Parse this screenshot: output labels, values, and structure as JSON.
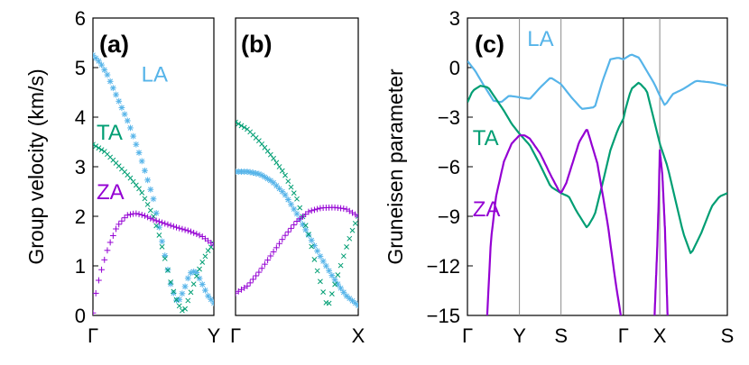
{
  "colors": {
    "LA": "#56b4e9",
    "TA": "#009e73",
    "ZA": "#9400d3"
  },
  "chart_data": [
    {
      "id": "a",
      "type": "scatter",
      "panel_label": "(a)",
      "ylabel": "Group velocity (km/s)",
      "xlabel": "",
      "ylim": [
        0,
        6
      ],
      "yticks": [
        0,
        1,
        2,
        3,
        4,
        5,
        6
      ],
      "xlim": [
        0,
        1
      ],
      "xticks": [
        {
          "x": 0,
          "label": "Γ"
        },
        {
          "x": 1,
          "label": "Y"
        }
      ],
      "mode_labels": [
        {
          "name": "LA",
          "x": 0.4,
          "y": 4.72
        },
        {
          "name": "TA",
          "x": 0.03,
          "y": 3.55
        },
        {
          "name": "ZA",
          "x": 0.03,
          "y": 2.35
        }
      ],
      "series": [
        {
          "name": "LA",
          "marker": "asterisk",
          "x": [
            0,
            0.06,
            0.12,
            0.2,
            0.3,
            0.4,
            0.5,
            0.55,
            0.6,
            0.65,
            0.7,
            0.75,
            0.8,
            0.85,
            0.9,
            0.95,
            1.0
          ],
          "y": [
            5.25,
            5.1,
            4.85,
            4.4,
            3.85,
            3.15,
            2.35,
            1.75,
            1.15,
            0.55,
            0.25,
            0.5,
            0.85,
            0.9,
            0.65,
            0.4,
            0.25
          ]
        },
        {
          "name": "TA",
          "marker": "cross",
          "x": [
            0,
            0.1,
            0.2,
            0.3,
            0.4,
            0.5,
            0.55,
            0.6,
            0.65,
            0.7,
            0.75,
            0.8,
            0.85,
            0.9,
            0.95,
            1.0
          ],
          "y": [
            3.45,
            3.3,
            3.05,
            2.8,
            2.5,
            2.0,
            1.6,
            1.1,
            0.6,
            0.25,
            0.05,
            0.4,
            0.75,
            1.05,
            1.3,
            1.45
          ]
        },
        {
          "name": "ZA",
          "marker": "plus",
          "x": [
            0,
            0.03,
            0.08,
            0.13,
            0.2,
            0.28,
            0.35,
            0.42,
            0.5,
            0.6,
            0.7,
            0.8,
            0.9,
            1.0
          ],
          "y": [
            0.05,
            0.55,
            1.0,
            1.4,
            1.8,
            2.02,
            2.06,
            2.02,
            1.93,
            1.85,
            1.77,
            1.7,
            1.6,
            1.42
          ]
        }
      ]
    },
    {
      "id": "b",
      "type": "scatter",
      "panel_label": "(b)",
      "ylabel": "",
      "xlabel": "",
      "ylim": [
        0,
        6
      ],
      "xlim": [
        0,
        1
      ],
      "xticks": [
        {
          "x": 0,
          "label": "Γ"
        },
        {
          "x": 1,
          "label": "X"
        }
      ],
      "series": [
        {
          "name": "LA",
          "marker": "asterisk",
          "x": [
            0,
            0.1,
            0.2,
            0.3,
            0.4,
            0.5,
            0.6,
            0.7,
            0.8,
            0.9,
            1.0
          ],
          "y": [
            2.9,
            2.9,
            2.85,
            2.7,
            2.45,
            2.05,
            1.6,
            1.15,
            0.75,
            0.4,
            0.2
          ]
        },
        {
          "name": "TA",
          "marker": "cross",
          "x": [
            0,
            0.1,
            0.2,
            0.3,
            0.4,
            0.5,
            0.6,
            0.65,
            0.7,
            0.75,
            0.8,
            0.85,
            0.9,
            0.95,
            1.0
          ],
          "y": [
            3.9,
            3.75,
            3.5,
            3.2,
            2.85,
            2.35,
            1.6,
            1.05,
            0.6,
            0.15,
            0.55,
            0.95,
            1.35,
            1.7,
            2.0
          ]
        },
        {
          "name": "ZA",
          "marker": "plus",
          "x": [
            0,
            0.1,
            0.2,
            0.3,
            0.4,
            0.5,
            0.6,
            0.7,
            0.8,
            0.9,
            1.0
          ],
          "y": [
            0.45,
            0.6,
            0.9,
            1.25,
            1.6,
            1.9,
            2.1,
            2.17,
            2.18,
            2.15,
            2.0
          ]
        }
      ]
    },
    {
      "id": "c",
      "type": "line",
      "panel_label": "(c)",
      "ylabel": "Gruneisen parameter",
      "xlabel": "",
      "ylim": [
        -15,
        3
      ],
      "yticks": [
        3,
        0,
        -3,
        -6,
        -9,
        -12,
        -15
      ],
      "xlim": [
        0,
        5
      ],
      "xticks": [
        {
          "x": 0,
          "label": "Γ"
        },
        {
          "x": 1,
          "label": "Y"
        },
        {
          "x": 1.8,
          "label": "S"
        },
        {
          "x": 3,
          "label": "Γ"
        },
        {
          "x": 3.7,
          "label": "X"
        },
        {
          "x": 5,
          "label": "S"
        }
      ],
      "vlines": [
        1,
        1.8,
        3,
        3.7
      ],
      "mode_labels": [
        {
          "name": "LA",
          "x": 1.15,
          "y": 1.3
        },
        {
          "name": "TA",
          "x": 0.1,
          "y": -4.7
        },
        {
          "name": "ZA",
          "x": 0.1,
          "y": -9.0
        }
      ],
      "series": [
        {
          "name": "LA",
          "x": [
            0,
            0.15,
            0.3,
            0.5,
            0.65,
            0.8,
            1.0,
            1.2,
            1.4,
            1.6,
            1.8,
            2.0,
            2.2,
            2.45,
            2.6,
            2.75,
            2.9,
            3.0,
            3.05,
            3.15,
            3.3,
            3.45,
            3.6,
            3.7,
            3.8,
            3.95,
            4.15,
            4.4,
            4.7,
            5.0
          ],
          "y": [
            0.4,
            -0.2,
            -1.0,
            -2.0,
            -2.1,
            -1.7,
            -1.8,
            -1.9,
            -1.2,
            -0.6,
            -1.0,
            -1.8,
            -2.5,
            -2.4,
            -0.8,
            0.5,
            0.6,
            0.5,
            0.6,
            0.8,
            0.6,
            -0.2,
            -1.0,
            -1.7,
            -2.3,
            -1.6,
            -1.3,
            -0.8,
            -0.9,
            -1.1
          ]
        },
        {
          "name": "TA",
          "x": [
            0,
            0.1,
            0.25,
            0.4,
            0.55,
            0.7,
            0.85,
            1.0,
            1.2,
            1.4,
            1.6,
            1.8,
            1.95,
            2.1,
            2.3,
            2.45,
            2.6,
            2.75,
            2.9,
            3.0,
            3.05,
            3.15,
            3.3,
            3.45,
            3.6,
            3.7,
            3.85,
            4.0,
            4.15,
            4.3,
            4.5,
            4.7,
            4.85,
            5.0
          ],
          "y": [
            -2.1,
            -1.4,
            -1.1,
            -1.2,
            -1.9,
            -2.6,
            -3.4,
            -4.0,
            -4.7,
            -5.9,
            -7.2,
            -7.6,
            -7.8,
            -8.7,
            -9.7,
            -8.9,
            -7.0,
            -5.0,
            -3.7,
            -3.1,
            -2.4,
            -1.3,
            -0.9,
            -1.4,
            -3.3,
            -4.6,
            -6.0,
            -8.0,
            -10.0,
            -11.3,
            -10.0,
            -8.4,
            -7.8,
            -7.6
          ]
        },
        {
          "name": "ZA",
          "x": [
            0.38,
            0.45,
            0.55,
            0.7,
            0.85,
            1.0,
            1.1,
            1.2,
            1.4,
            1.6,
            1.75,
            1.8,
            1.9,
            2.0,
            2.15,
            2.3,
            2.5,
            2.7,
            2.85,
            2.95
          ],
          "y": [
            -15,
            -10.5,
            -7.8,
            -5.7,
            -4.6,
            -4.1,
            -4.1,
            -4.3,
            -5.2,
            -6.5,
            -7.4,
            -7.6,
            -7.0,
            -6.0,
            -4.5,
            -3.7,
            -5.8,
            -9.5,
            -13.0,
            -15
          ]
        },
        {
          "name": "ZA",
          "x": [
            3.6,
            3.65,
            3.68,
            3.7,
            3.75,
            3.8,
            3.85
          ],
          "y": [
            -15,
            -11,
            -8,
            -5.0,
            -6.5,
            -9.8,
            -15
          ]
        }
      ]
    }
  ]
}
